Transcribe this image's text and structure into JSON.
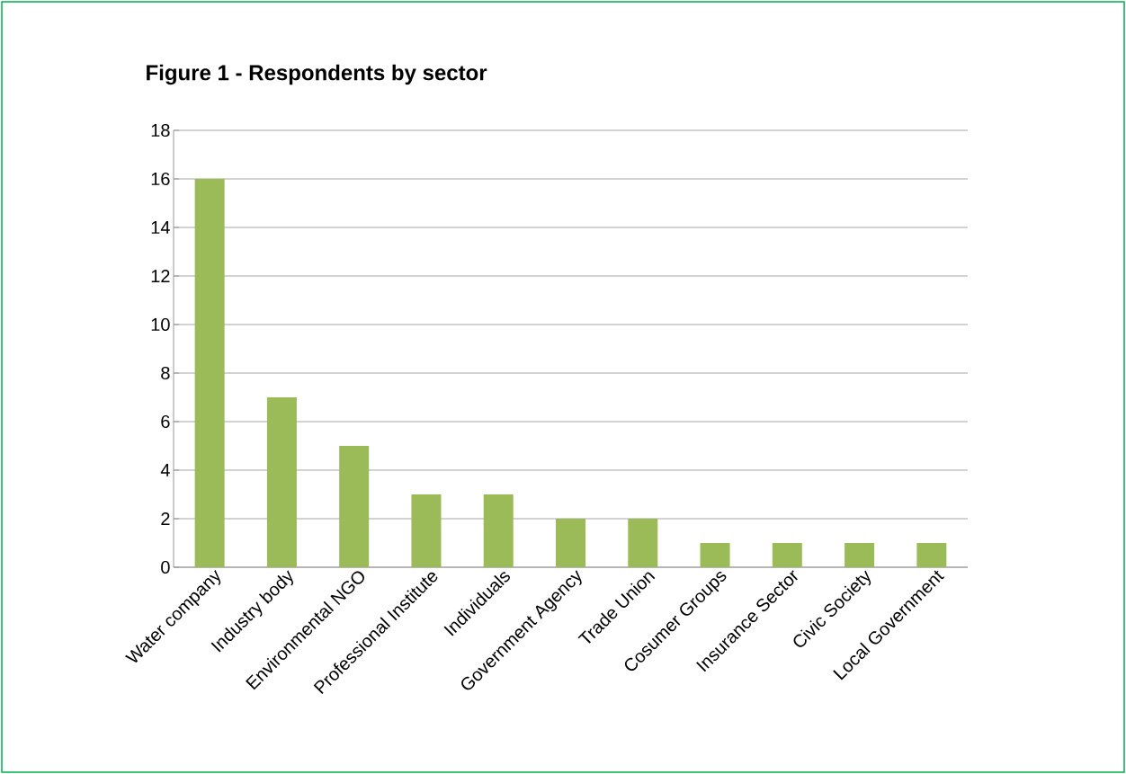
{
  "chart_data": {
    "type": "bar",
    "title": "Figure 1 - Respondents by sector",
    "categories": [
      "Water company",
      "Industry body",
      "Environmental NGO",
      "Professional Institute",
      "Individuals",
      "Government Agency",
      "Trade Union",
      "Cosumer Groups",
      "Insurance Sector",
      "Civic Society",
      "Local Government"
    ],
    "values": [
      16,
      7,
      5,
      3,
      3,
      2,
      2,
      1,
      1,
      1,
      1
    ],
    "color": "#9bbb59",
    "ylim": [
      0,
      18
    ],
    "yticks": [
      0,
      2,
      4,
      6,
      8,
      10,
      12,
      14,
      16,
      18
    ],
    "grid": "y"
  }
}
